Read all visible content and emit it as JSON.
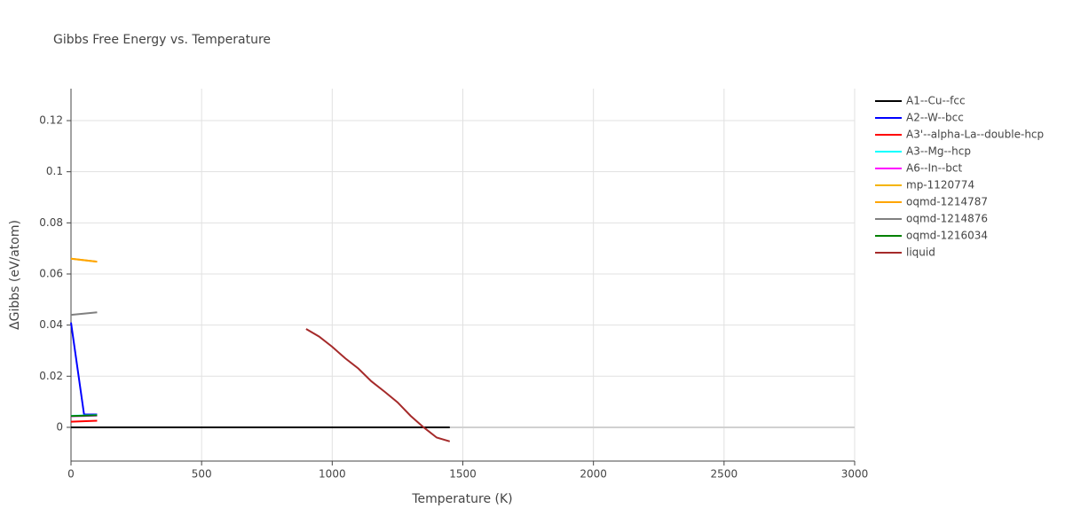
{
  "chart_data": {
    "type": "line",
    "title": "Gibbs Free Energy vs. Temperature",
    "x_label": "Temperature (K)",
    "y_label": "ΔGibbs (eV/atom)",
    "xlim": [
      0,
      3000
    ],
    "xticks": [
      0,
      500,
      1000,
      1500,
      2000,
      2500,
      3000
    ],
    "ylim": [
      -0.0132,
      0.1325
    ],
    "yticks": [
      0,
      0.02,
      0.04,
      0.06,
      0.08,
      0.1,
      0.12
    ],
    "grid": true,
    "legend": "right",
    "series": [
      {
        "name": "A1--Cu--fcc",
        "color": "#000000",
        "x": [
          0,
          1450
        ],
        "values": [
          0,
          0
        ]
      },
      {
        "name": "A2--W--bcc",
        "color": "#0000ff",
        "x": [
          0,
          50,
          100
        ],
        "values": [
          0.041,
          0.005,
          0.005
        ]
      },
      {
        "name": "A3'--alpha-La--double-hcp",
        "color": "#ff0000",
        "x": [
          0,
          100
        ],
        "values": [
          0.0022,
          0.0026
        ]
      },
      {
        "name": "A3--Mg--hcp",
        "color": "#00ffff",
        "x": [
          0,
          100
        ],
        "values": [
          0.0045,
          0.0048
        ]
      },
      {
        "name": "A6--In--bct",
        "color": "#ff00ff",
        "x": [
          0,
          100
        ],
        "values": [
          0.0043,
          0.0046
        ]
      },
      {
        "name": "mp-1120774",
        "color": "#f4b400",
        "x": [
          0,
          100
        ],
        "values": [
          0.066,
          0.0648
        ]
      },
      {
        "name": "oqmd-1214787",
        "color": "#ffa500",
        "x": [
          0,
          100
        ],
        "values": [
          0.066,
          0.0648
        ]
      },
      {
        "name": "oqmd-1214876",
        "color": "#808080",
        "x": [
          0,
          100
        ],
        "values": [
          0.044,
          0.045
        ]
      },
      {
        "name": "oqmd-1216034",
        "color": "#008000",
        "x": [
          0,
          100
        ],
        "values": [
          0.0044,
          0.0047
        ]
      },
      {
        "name": "liquid",
        "color": "#a52a2a",
        "x": [
          900,
          950,
          1000,
          1050,
          1100,
          1150,
          1200,
          1250,
          1300,
          1350,
          1400,
          1450
        ],
        "values": [
          0.0385,
          0.0355,
          0.0315,
          0.027,
          0.023,
          0.018,
          0.014,
          0.0098,
          0.0045,
          0,
          -0.004,
          -0.0055
        ]
      }
    ]
  }
}
